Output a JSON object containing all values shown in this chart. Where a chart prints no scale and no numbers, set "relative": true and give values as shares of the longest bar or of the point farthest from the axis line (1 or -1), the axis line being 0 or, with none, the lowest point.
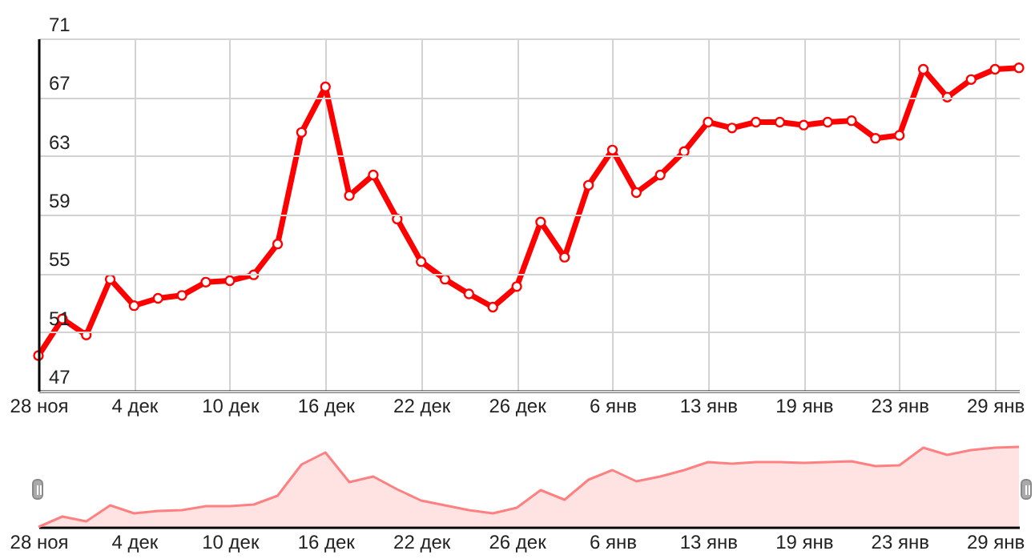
{
  "chart_data": [
    {
      "type": "line",
      "categories": [
        "28 ноя",
        null,
        null,
        null,
        "4 дек",
        null,
        null,
        null,
        "10 дек",
        null,
        null,
        null,
        "16 дек",
        null,
        null,
        null,
        "22 дек",
        null,
        null,
        null,
        "26 дек",
        null,
        null,
        null,
        "6 янв",
        null,
        null,
        null,
        "13 янв",
        null,
        null,
        null,
        "19 янв",
        null,
        null,
        null,
        "23 янв",
        null,
        null,
        null,
        "29 янв",
        null
      ],
      "values": [
        49.4,
        51.9,
        50.8,
        54.6,
        52.8,
        53.3,
        53.5,
        54.4,
        54.5,
        54.9,
        57.0,
        64.6,
        67.7,
        60.3,
        61.7,
        58.7,
        55.8,
        54.6,
        53.6,
        52.7,
        54.1,
        58.5,
        56.1,
        61.0,
        63.4,
        60.5,
        61.7,
        63.3,
        65.3,
        64.9,
        65.3,
        65.3,
        65.1,
        65.3,
        65.4,
        64.2,
        64.4,
        68.9,
        67.0,
        68.2,
        68.9,
        69.0
      ],
      "color": "#ff0000",
      "marker": "circle",
      "line_style": "solid",
      "grid": true,
      "ylim": [
        47,
        71
      ],
      "yticks": [
        47,
        51,
        55,
        59,
        63,
        67,
        71
      ]
    },
    {
      "type": "area",
      "relative": true,
      "categories": [
        "28 ноя",
        null,
        null,
        null,
        "4 дек",
        null,
        null,
        null,
        "10 дек",
        null,
        null,
        null,
        "16 дек",
        null,
        null,
        null,
        "22 дек",
        null,
        null,
        null,
        "26 дек",
        null,
        null,
        null,
        "6 янв",
        null,
        null,
        null,
        "13 янв",
        null,
        null,
        null,
        "19 янв",
        null,
        null,
        null,
        "23 янв",
        null,
        null,
        null,
        "29 янв",
        null
      ],
      "values": [
        0,
        0.13,
        0.07,
        0.27,
        0.17,
        0.2,
        0.21,
        0.26,
        0.26,
        0.28,
        0.39,
        0.78,
        0.93,
        0.56,
        0.63,
        0.47,
        0.33,
        0.27,
        0.21,
        0.17,
        0.24,
        0.46,
        0.34,
        0.59,
        0.71,
        0.57,
        0.63,
        0.71,
        0.81,
        0.79,
        0.81,
        0.81,
        0.8,
        0.81,
        0.82,
        0.76,
        0.77,
        0.99,
        0.9,
        0.96,
        0.99,
        1
      ],
      "color": "#ff8080"
    }
  ]
}
